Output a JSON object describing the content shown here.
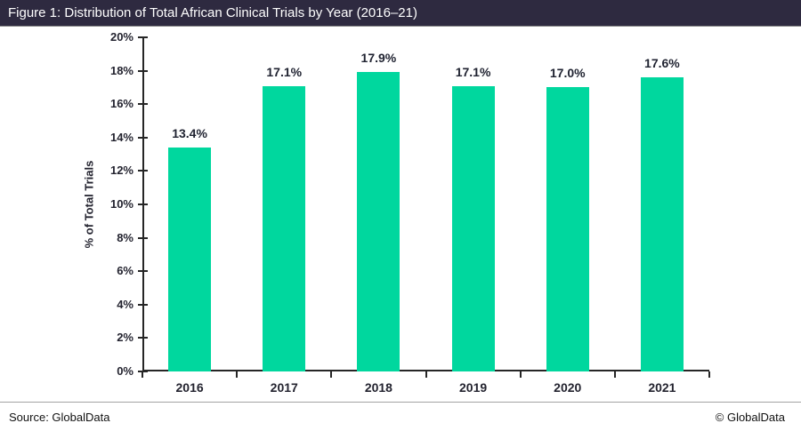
{
  "header": {
    "title": "Figure 1: Distribution of Total African Clinical Trials by Year (2016–21)",
    "bg_color": "#2e2a40",
    "text_color": "#ffffff"
  },
  "chart_data": {
    "type": "bar",
    "title": "Figure 1: Distribution of Total African Clinical Trials by Year (2016–21)",
    "categories": [
      "2016",
      "2017",
      "2018",
      "2019",
      "2020",
      "2021"
    ],
    "values": [
      13.4,
      17.1,
      17.9,
      17.1,
      17.0,
      17.6
    ],
    "value_labels": [
      "13.4%",
      "17.1%",
      "17.9%",
      "17.1%",
      "17.0%",
      "17.6%"
    ],
    "xlabel": "",
    "ylabel": "% of Total Trials",
    "ylim": [
      0,
      20
    ],
    "ytick_step": 2,
    "ytick_suffix": "%",
    "bar_color": "#00d79e",
    "axis_color": "#262626",
    "grid": "off",
    "legend": "none"
  },
  "footer": {
    "source": "Source: GlobalData",
    "copyright": "© GlobalData"
  }
}
